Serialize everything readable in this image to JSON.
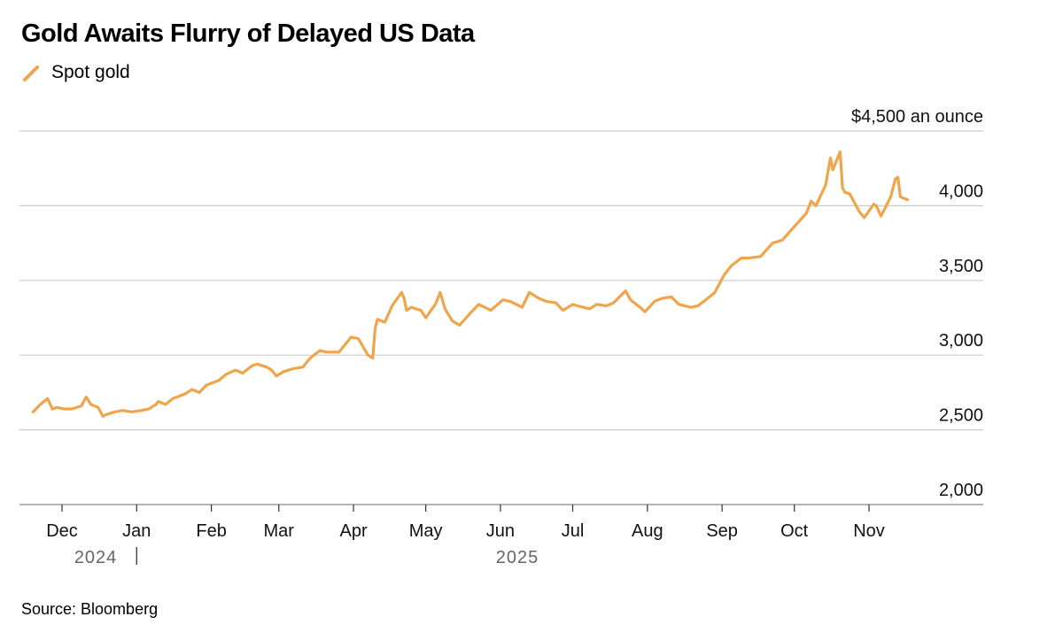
{
  "title": "Gold Awaits Flurry of Delayed US Data",
  "source": "Source: Bloomberg",
  "colors": {
    "series": "#F0A54A",
    "grid": "#cccccc",
    "axis": "#333333"
  },
  "chart_data": {
    "type": "line",
    "title": "Gold Awaits Flurry of Delayed US Data",
    "ylabel": "$4,500 an ounce",
    "ylim": [
      2000,
      4500
    ],
    "y_ticks": [
      2000,
      2500,
      3000,
      3500,
      4000,
      4500
    ],
    "y_tick_labels": [
      "2,000",
      "2,500",
      "3,000",
      "3,500",
      "4,000",
      "$4,500 an ounce"
    ],
    "x_ticks": [
      "2024-12-01",
      "2025-01-01",
      "2025-02-01",
      "2025-03-01",
      "2025-04-01",
      "2025-05-01",
      "2025-06-01",
      "2025-07-01",
      "2025-08-01",
      "2025-09-01",
      "2025-10-01",
      "2025-11-01"
    ],
    "x_tick_labels": [
      "Dec",
      "Jan",
      "Feb",
      "Mar",
      "Apr",
      "May",
      "Jun",
      "Jul",
      "Aug",
      "Sep",
      "Oct",
      "Nov"
    ],
    "year_labels": [
      {
        "label": "2024",
        "date": "2024-12-15"
      },
      {
        "label": "2025",
        "date": "2025-06-08"
      }
    ],
    "year_divider": "2025-01-01",
    "series": [
      {
        "name": "Spot gold",
        "x": [
          "2024-11-19",
          "2024-11-22",
          "2024-11-25",
          "2024-11-27",
          "2024-11-29",
          "2024-12-02",
          "2024-12-05",
          "2024-12-09",
          "2024-12-11",
          "2024-12-13",
          "2024-12-16",
          "2024-12-18",
          "2024-12-19",
          "2024-12-23",
          "2024-12-26",
          "2024-12-30",
          "2025-01-03",
          "2025-01-06",
          "2025-01-09",
          "2025-01-10",
          "2025-01-13",
          "2025-01-16",
          "2025-01-21",
          "2025-01-24",
          "2025-01-27",
          "2025-01-30",
          "2025-02-04",
          "2025-02-07",
          "2025-02-11",
          "2025-02-14",
          "2025-02-18",
          "2025-02-20",
          "2025-02-24",
          "2025-02-26",
          "2025-02-28",
          "2025-03-03",
          "2025-03-07",
          "2025-03-11",
          "2025-03-14",
          "2025-03-18",
          "2025-03-21",
          "2025-03-26",
          "2025-03-31",
          "2025-04-03",
          "2025-04-07",
          "2025-04-09",
          "2025-04-10",
          "2025-04-11",
          "2025-04-14",
          "2025-04-17",
          "2025-04-21",
          "2025-04-22",
          "2025-04-23",
          "2025-04-25",
          "2025-04-29",
          "2025-05-01",
          "2025-05-05",
          "2025-05-07",
          "2025-05-09",
          "2025-05-12",
          "2025-05-15",
          "2025-05-20",
          "2025-05-23",
          "2025-05-28",
          "2025-06-02",
          "2025-06-05",
          "2025-06-10",
          "2025-06-13",
          "2025-06-17",
          "2025-06-20",
          "2025-06-24",
          "2025-06-27",
          "2025-07-01",
          "2025-07-03",
          "2025-07-08",
          "2025-07-11",
          "2025-07-15",
          "2025-07-18",
          "2025-07-21",
          "2025-07-23",
          "2025-07-25",
          "2025-07-29",
          "2025-07-31",
          "2025-08-04",
          "2025-08-07",
          "2025-08-11",
          "2025-08-14",
          "2025-08-19",
          "2025-08-22",
          "2025-08-26",
          "2025-08-29",
          "2025-09-02",
          "2025-09-05",
          "2025-09-09",
          "2025-09-12",
          "2025-09-17",
          "2025-09-22",
          "2025-09-26",
          "2025-10-01",
          "2025-10-06",
          "2025-10-08",
          "2025-10-10",
          "2025-10-14",
          "2025-10-16",
          "2025-10-17",
          "2025-10-20",
          "2025-10-21",
          "2025-10-22",
          "2025-10-24",
          "2025-10-28",
          "2025-10-30",
          "2025-11-03",
          "2025-11-04",
          "2025-11-06",
          "2025-11-10",
          "2025-11-12",
          "2025-11-13",
          "2025-11-14",
          "2025-11-17"
        ],
        "values": [
          2620,
          2670,
          2710,
          2640,
          2650,
          2640,
          2640,
          2660,
          2720,
          2670,
          2650,
          2590,
          2600,
          2620,
          2630,
          2620,
          2630,
          2640,
          2670,
          2690,
          2670,
          2710,
          2740,
          2770,
          2750,
          2800,
          2830,
          2870,
          2900,
          2880,
          2930,
          2940,
          2920,
          2900,
          2860,
          2890,
          2910,
          2920,
          2980,
          3030,
          3020,
          3020,
          3120,
          3110,
          3000,
          2980,
          3180,
          3240,
          3220,
          3330,
          3420,
          3380,
          3300,
          3320,
          3300,
          3250,
          3340,
          3420,
          3310,
          3230,
          3200,
          3290,
          3340,
          3300,
          3370,
          3360,
          3320,
          3420,
          3380,
          3360,
          3350,
          3300,
          3340,
          3330,
          3310,
          3340,
          3330,
          3350,
          3400,
          3430,
          3370,
          3320,
          3290,
          3360,
          3380,
          3390,
          3340,
          3320,
          3330,
          3380,
          3420,
          3540,
          3600,
          3650,
          3650,
          3660,
          3750,
          3770,
          3860,
          3950,
          4030,
          4000,
          4140,
          4320,
          4240,
          4360,
          4120,
          4090,
          4080,
          3960,
          3920,
          4010,
          4000,
          3930,
          4060,
          4180,
          4190,
          4060,
          4040
        ]
      }
    ]
  }
}
